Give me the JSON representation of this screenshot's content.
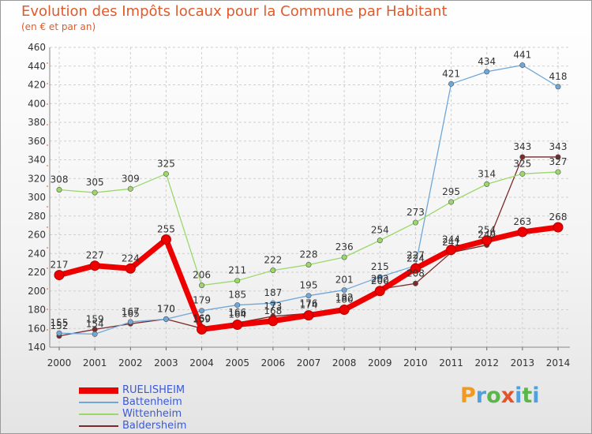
{
  "header": {
    "title": "Evolution des Impôts locaux pour la Commune par Habitant",
    "subtitle": "(en € et par an)"
  },
  "logo": {
    "text": "Proxiti",
    "colors": [
      "#f29a1f",
      "#4fa0dc",
      "#5cb54a",
      "#e0562a",
      "#4fa0dc",
      "#5cb54a",
      "#4fa0dc"
    ]
  },
  "chart_data": {
    "type": "line",
    "title": "Evolution des Impôts locaux pour la Commune par Habitant",
    "subtitle": "(en € et par an)",
    "xlabel": "",
    "ylabel": "",
    "x": [
      "2000",
      "2001",
      "2002",
      "2003",
      "2004",
      "2005",
      "2006",
      "2007",
      "2008",
      "2009",
      "2010",
      "2011",
      "2012",
      "2013",
      "2014"
    ],
    "ylim": [
      140,
      460
    ],
    "yticks": [
      140,
      160,
      180,
      200,
      220,
      240,
      260,
      280,
      300,
      320,
      340,
      360,
      380,
      400,
      420,
      440,
      460
    ],
    "grid": true,
    "legend_position": "bottom-left",
    "series": [
      {
        "name": "RUELISHEIM",
        "color": "#ee0000",
        "values": [
          217,
          227,
          224,
          255,
          159,
          164,
          168,
          174,
          180,
          200,
          224,
          244,
          254,
          263,
          268
        ]
      },
      {
        "name": "Battenheim",
        "color": "#6fa7d8",
        "values": [
          155,
          154,
          167,
          170,
          179,
          185,
          187,
          195,
          201,
          215,
          227,
          421,
          434,
          441,
          418
        ]
      },
      {
        "name": "Wittenheim",
        "color": "#9bd86a",
        "values": [
          308,
          305,
          309,
          325,
          206,
          211,
          222,
          228,
          236,
          254,
          273,
          295,
          314,
          325,
          327
        ]
      },
      {
        "name": "Baldersheim",
        "color": "#7a2a2a",
        "values": [
          152,
          159,
          165,
          170,
          160,
          166,
          173,
          176,
          182,
          202,
          208,
          241,
          249,
          343,
          343
        ]
      }
    ]
  }
}
